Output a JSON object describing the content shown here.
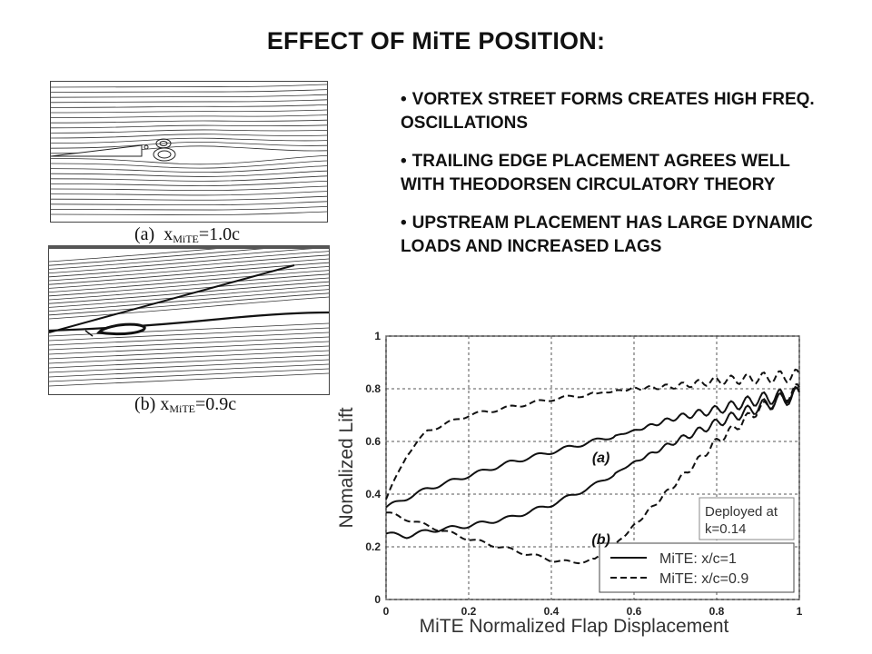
{
  "slide": {
    "title": "EFFECT OF MiTE POSITION:",
    "bullets": [
      "VORTEX STREET FORMS CREATES HIGH FREQ. OSCILLATIONS",
      "TRAILING EDGE PLACEMENT AGREES WELL WITH THEODORSEN CIRCULATORY THEORY",
      "UPSTREAM PLACEMENT HAS LARGE DYNAMIC LOADS AND INCREASED LAGS"
    ]
  },
  "figures": {
    "a": {
      "prefix": "(a)",
      "var": "x",
      "sub": "MiTE",
      "value": "=1.0c"
    },
    "b": {
      "prefix": "(b)",
      "var": "x",
      "sub": "MiTE",
      "value": "=0.9c"
    }
  },
  "chart_data": {
    "type": "line",
    "xlabel": "MiTE Normalized Flap Displacement",
    "ylabel": "Nomalized Lift",
    "xlim": [
      0,
      1
    ],
    "ylim": [
      0,
      1
    ],
    "xticks": [
      "0",
      "0.2",
      "0.4",
      "0.6",
      "0.8",
      "1"
    ],
    "yticks": [
      "0",
      "0.2",
      "0.4",
      "0.6",
      "0.8",
      "1"
    ],
    "grid": true,
    "legend_position": "bottom-right",
    "annotation_box": {
      "line1": "Deployed at",
      "line2": "k=0.14"
    },
    "curve_labels": [
      {
        "text": "(a)",
        "x": 0.52,
        "y": 0.52
      },
      {
        "text": "(b)",
        "x": 0.52,
        "y": 0.21
      }
    ],
    "series": [
      {
        "name": "MiTE: x/c=1",
        "style": "solid",
        "upper": [
          [
            0,
            0.35
          ],
          [
            0.1,
            0.42
          ],
          [
            0.2,
            0.47
          ],
          [
            0.3,
            0.52
          ],
          [
            0.4,
            0.56
          ],
          [
            0.5,
            0.6
          ],
          [
            0.6,
            0.64
          ],
          [
            0.7,
            0.69
          ],
          [
            0.8,
            0.72
          ],
          [
            0.9,
            0.76
          ],
          [
            1,
            0.78
          ]
        ],
        "lower": [
          [
            0,
            0.25
          ],
          [
            0.05,
            0.24
          ],
          [
            0.1,
            0.26
          ],
          [
            0.2,
            0.28
          ],
          [
            0.3,
            0.31
          ],
          [
            0.4,
            0.36
          ],
          [
            0.5,
            0.43
          ],
          [
            0.6,
            0.52
          ],
          [
            0.7,
            0.6
          ],
          [
            0.8,
            0.67
          ],
          [
            0.9,
            0.73
          ],
          [
            1,
            0.78
          ]
        ]
      },
      {
        "name": "MiTE: x/c=0.9",
        "style": "dashed",
        "upper": [
          [
            0,
            0.38
          ],
          [
            0.05,
            0.55
          ],
          [
            0.1,
            0.64
          ],
          [
            0.2,
            0.7
          ],
          [
            0.3,
            0.73
          ],
          [
            0.4,
            0.76
          ],
          [
            0.5,
            0.78
          ],
          [
            0.6,
            0.8
          ],
          [
            0.7,
            0.81
          ],
          [
            0.8,
            0.83
          ],
          [
            0.9,
            0.84
          ],
          [
            1,
            0.85
          ]
        ],
        "lower": [
          [
            0,
            0.33
          ],
          [
            0.1,
            0.28
          ],
          [
            0.2,
            0.23
          ],
          [
            0.3,
            0.19
          ],
          [
            0.4,
            0.15
          ],
          [
            0.45,
            0.14
          ],
          [
            0.5,
            0.15
          ],
          [
            0.55,
            0.2
          ],
          [
            0.6,
            0.28
          ],
          [
            0.7,
            0.44
          ],
          [
            0.8,
            0.6
          ],
          [
            0.9,
            0.72
          ],
          [
            1,
            0.8
          ]
        ]
      }
    ]
  }
}
